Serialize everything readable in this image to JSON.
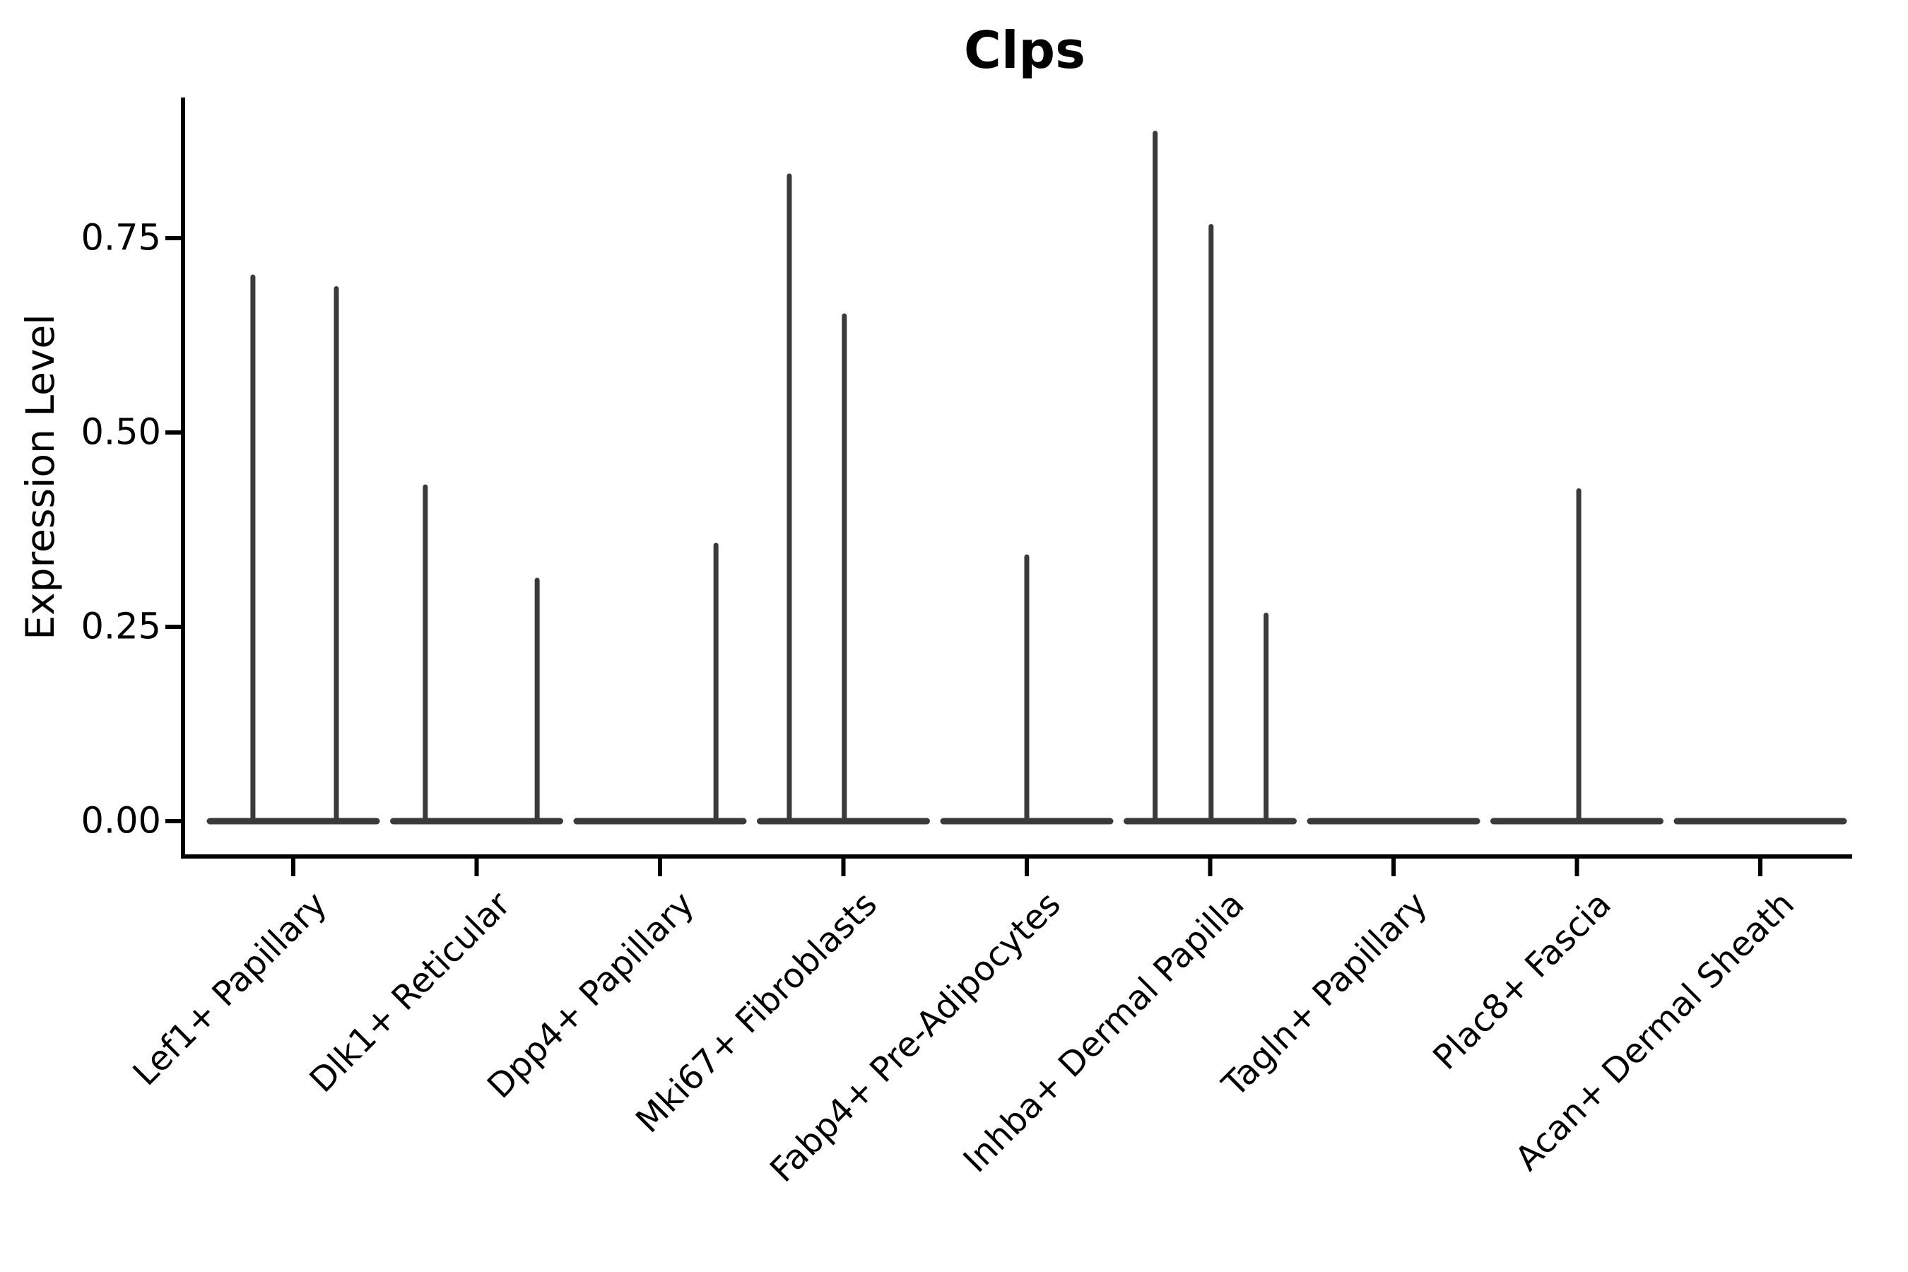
{
  "chart_data": {
    "type": "violin",
    "title": "Clps",
    "ylabel": "Expression Level",
    "xlabel": "",
    "yticks": [
      "0.00",
      "0.25",
      "0.50",
      "0.75"
    ],
    "ytick_values": [
      0.0,
      0.25,
      0.5,
      0.75
    ],
    "ylim": [
      -0.049,
      0.931
    ],
    "grid": false,
    "legend": "none",
    "categories": [
      "Lef1+ Papillary",
      "Dlk1+ Reticular",
      "Dpp4+ Papillary",
      "Mki67+ Fibroblasts",
      "Fabp4+ Pre-Adipocytes",
      "Inhba+ Dermal Papilla",
      "Tagln+ Papillary",
      "Plac8+ Fascia",
      "Acan+ Dermal Sheath"
    ],
    "series": [
      {
        "name": "Lef1+ Papillary",
        "baseline": 0.0,
        "spikes": [
          {
            "offset_frac": -0.22,
            "max": 0.7
          },
          {
            "offset_frac": 0.235,
            "max": 0.685
          }
        ]
      },
      {
        "name": "Dlk1+ Reticular",
        "baseline": 0.0,
        "spikes": [
          {
            "offset_frac": -0.28,
            "max": 0.43
          },
          {
            "offset_frac": 0.33,
            "max": 0.31
          }
        ]
      },
      {
        "name": "Dpp4+ Papillary",
        "baseline": 0.0,
        "spikes": [
          {
            "offset_frac": 0.305,
            "max": 0.355
          }
        ]
      },
      {
        "name": "Mki67+ Fibroblasts",
        "baseline": 0.0,
        "spikes": [
          {
            "offset_frac": -0.295,
            "max": 0.83
          },
          {
            "offset_frac": 0.005,
            "max": 0.65
          }
        ]
      },
      {
        "name": "Fabp4+ Pre-Adipocytes",
        "baseline": 0.0,
        "spikes": [
          {
            "offset_frac": 0.0,
            "max": 0.34
          }
        ]
      },
      {
        "name": "Inhba+ Dermal Papilla",
        "baseline": 0.0,
        "spikes": [
          {
            "offset_frac": -0.3,
            "max": 0.885
          },
          {
            "offset_frac": 0.005,
            "max": 0.765
          },
          {
            "offset_frac": 0.305,
            "max": 0.265
          }
        ]
      },
      {
        "name": "Tagln+ Papillary",
        "baseline": 0.0,
        "spikes": []
      },
      {
        "name": "Plac8+ Fascia",
        "baseline": 0.0,
        "spikes": [
          {
            "offset_frac": 0.01,
            "max": 0.425
          }
        ]
      },
      {
        "name": "Acan+ Dermal Sheath",
        "baseline": 0.0,
        "spikes": []
      }
    ]
  },
  "colors": {
    "background": "#ffffff",
    "violin": "#3a3a3a",
    "axis": "#000000",
    "text": "#000000"
  }
}
